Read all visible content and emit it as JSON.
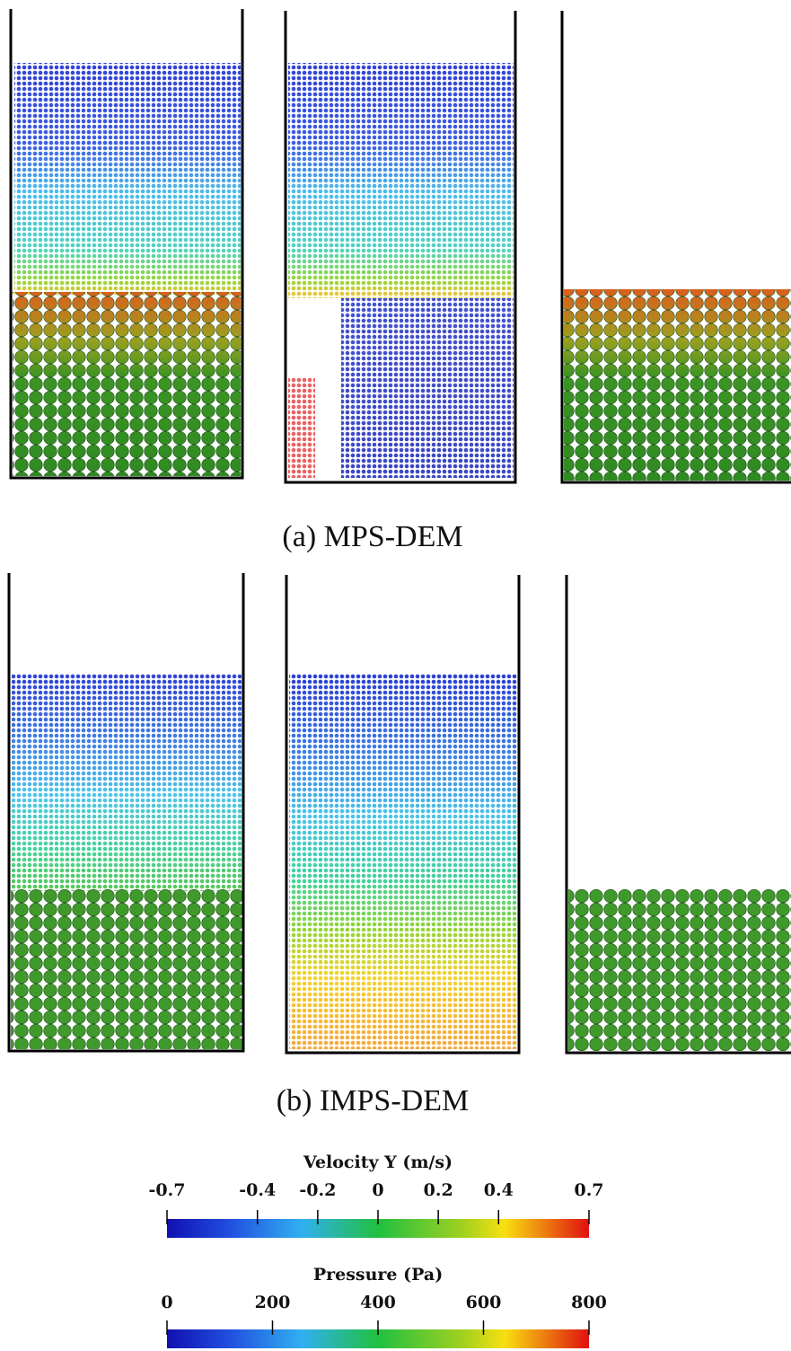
{
  "captions": [
    "(a) MPS-DEM",
    "(b) IMPS-DEM"
  ],
  "colorbars": [
    {
      "title": "Velocity Y (m/s)",
      "lim": [
        -0.7,
        0.7
      ],
      "ticks": [
        -0.7,
        -0.4,
        -0.2,
        0,
        0.2,
        0.4,
        0.7
      ]
    },
    {
      "title": "Pressure (Pa)",
      "lim": [
        0,
        800
      ],
      "ticks": [
        0,
        200,
        400,
        600,
        800
      ]
    }
  ]
}
